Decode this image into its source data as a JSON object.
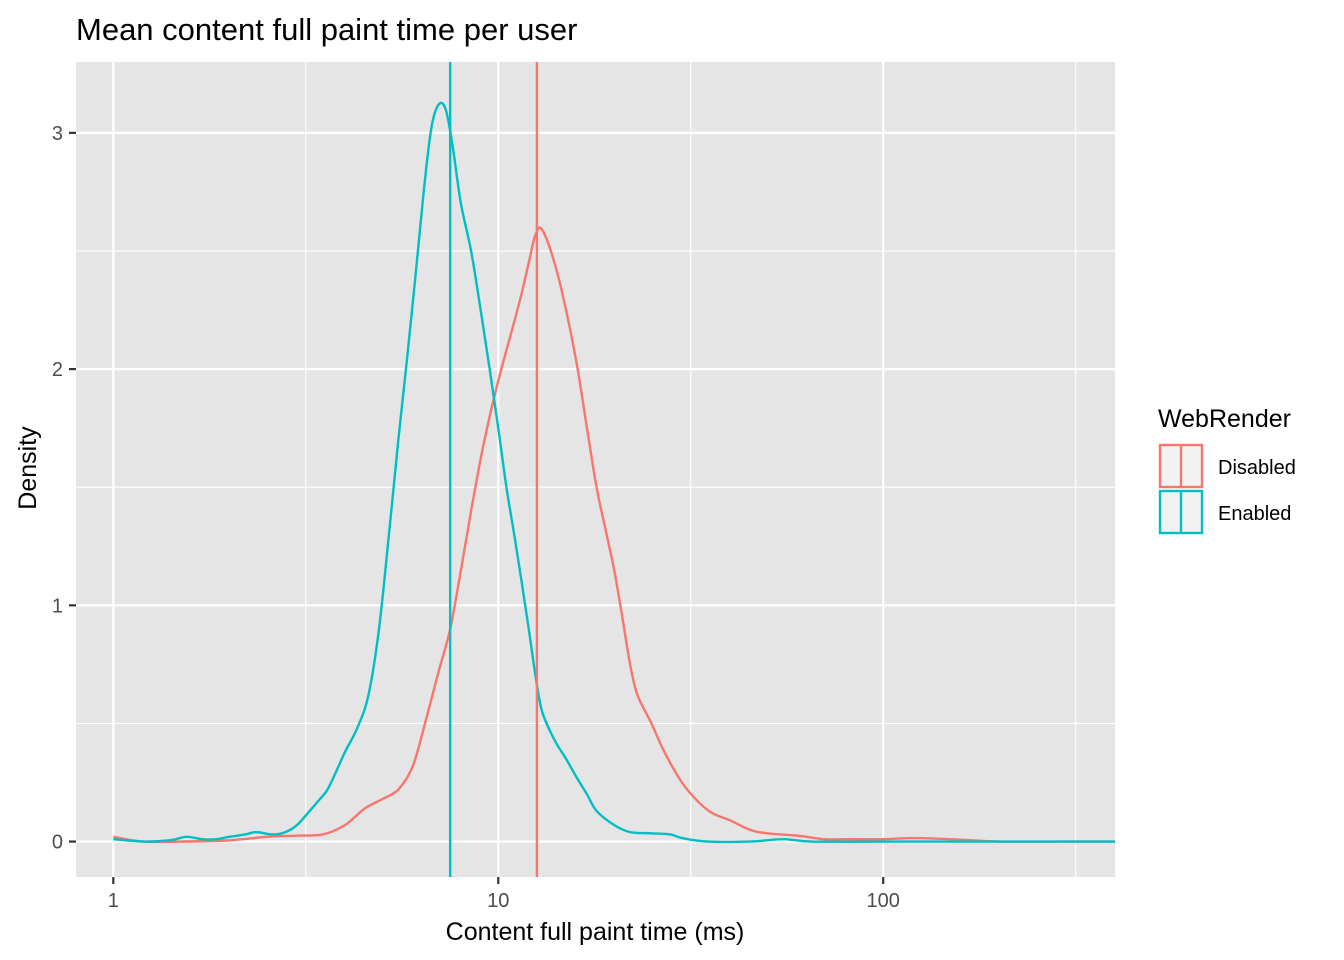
{
  "chart_data": {
    "type": "line",
    "title": "Mean content full paint time per user",
    "xlabel": "Content full paint time (ms)",
    "ylabel": "Density",
    "x_scale": "log10",
    "xlim": [
      0.8,
      400
    ],
    "ylim": [
      -0.15,
      3.3
    ],
    "x_ticks": [
      {
        "value": 1,
        "label": "1"
      },
      {
        "value": 10,
        "label": "10"
      },
      {
        "value": 100,
        "label": "100"
      }
    ],
    "x_minor_ticks": [
      3.1623,
      31.623,
      316.23
    ],
    "y_ticks": [
      {
        "value": 0,
        "label": "0"
      },
      {
        "value": 1,
        "label": "1"
      },
      {
        "value": 2,
        "label": "2"
      },
      {
        "value": 3,
        "label": "3"
      }
    ],
    "y_minor_ticks": [
      0.5,
      1.5,
      2.5
    ],
    "grid": true,
    "panel_color": "#e5e5e5",
    "grid_color": "#ffffff",
    "legend": {
      "title": "WebRender",
      "position": "right"
    },
    "series": [
      {
        "name": "Disabled",
        "color": "#f8766d",
        "mean": 12.6,
        "points": [
          [
            1.0,
            0.02
          ],
          [
            1.2,
            0.0
          ],
          [
            1.5,
            0.0
          ],
          [
            2.0,
            0.005
          ],
          [
            2.5,
            0.02
          ],
          [
            3.0,
            0.025
          ],
          [
            3.5,
            0.03
          ],
          [
            4.0,
            0.07
          ],
          [
            4.5,
            0.14
          ],
          [
            5.0,
            0.18
          ],
          [
            5.5,
            0.22
          ],
          [
            6.0,
            0.32
          ],
          [
            6.5,
            0.52
          ],
          [
            7.0,
            0.72
          ],
          [
            7.5,
            0.9
          ],
          [
            8.0,
            1.15
          ],
          [
            8.5,
            1.4
          ],
          [
            9.0,
            1.62
          ],
          [
            9.5,
            1.8
          ],
          [
            10.0,
            1.95
          ],
          [
            10.5,
            2.08
          ],
          [
            11.0,
            2.2
          ],
          [
            11.5,
            2.32
          ],
          [
            12.0,
            2.45
          ],
          [
            12.5,
            2.57
          ],
          [
            13.0,
            2.59
          ],
          [
            14.0,
            2.45
          ],
          [
            15.0,
            2.25
          ],
          [
            16.0,
            2.02
          ],
          [
            17.0,
            1.75
          ],
          [
            18.0,
            1.5
          ],
          [
            19.0,
            1.32
          ],
          [
            20.0,
            1.15
          ],
          [
            21.0,
            0.95
          ],
          [
            22.0,
            0.75
          ],
          [
            23.0,
            0.62
          ],
          [
            25.0,
            0.5
          ],
          [
            27.0,
            0.38
          ],
          [
            30.0,
            0.25
          ],
          [
            33.0,
            0.17
          ],
          [
            36.0,
            0.12
          ],
          [
            40.0,
            0.09
          ],
          [
            45.0,
            0.05
          ],
          [
            50.0,
            0.035
          ],
          [
            60.0,
            0.025
          ],
          [
            70.0,
            0.01
          ],
          [
            80.0,
            0.01
          ],
          [
            100.0,
            0.01
          ],
          [
            120.0,
            0.015
          ],
          [
            150.0,
            0.01
          ],
          [
            200.0,
            0.0
          ],
          [
            300.0,
            0.0
          ],
          [
            400.0,
            0.0
          ]
        ]
      },
      {
        "name": "Enabled",
        "color": "#00bfc4",
        "mean": 7.5,
        "points": [
          [
            1.0,
            0.01
          ],
          [
            1.2,
            0.0
          ],
          [
            1.4,
            0.005
          ],
          [
            1.55,
            0.02
          ],
          [
            1.7,
            0.01
          ],
          [
            1.85,
            0.01
          ],
          [
            2.0,
            0.02
          ],
          [
            2.2,
            0.03
          ],
          [
            2.35,
            0.04
          ],
          [
            2.6,
            0.03
          ],
          [
            2.8,
            0.04
          ],
          [
            3.0,
            0.07
          ],
          [
            3.2,
            0.12
          ],
          [
            3.4,
            0.17
          ],
          [
            3.6,
            0.22
          ],
          [
            3.8,
            0.3
          ],
          [
            4.0,
            0.38
          ],
          [
            4.3,
            0.48
          ],
          [
            4.6,
            0.62
          ],
          [
            4.9,
            0.9
          ],
          [
            5.2,
            1.3
          ],
          [
            5.5,
            1.7
          ],
          [
            5.8,
            2.05
          ],
          [
            6.1,
            2.4
          ],
          [
            6.4,
            2.75
          ],
          [
            6.7,
            3.02
          ],
          [
            7.0,
            3.12
          ],
          [
            7.3,
            3.1
          ],
          [
            7.6,
            2.95
          ],
          [
            8.0,
            2.7
          ],
          [
            8.5,
            2.5
          ],
          [
            9.0,
            2.25
          ],
          [
            9.5,
            2.0
          ],
          [
            10.0,
            1.75
          ],
          [
            10.5,
            1.5
          ],
          [
            11.0,
            1.3
          ],
          [
            11.5,
            1.1
          ],
          [
            12.0,
            0.9
          ],
          [
            12.5,
            0.7
          ],
          [
            13.0,
            0.55
          ],
          [
            14.0,
            0.43
          ],
          [
            15.0,
            0.35
          ],
          [
            16.0,
            0.27
          ],
          [
            17.0,
            0.2
          ],
          [
            18.0,
            0.13
          ],
          [
            20.0,
            0.07
          ],
          [
            22.0,
            0.04
          ],
          [
            25.0,
            0.035
          ],
          [
            28.0,
            0.03
          ],
          [
            30.0,
            0.015
          ],
          [
            35.0,
            0.0
          ],
          [
            45.0,
            0.0
          ],
          [
            55.0,
            0.01
          ],
          [
            65.0,
            0.0
          ],
          [
            100.0,
            0.0
          ],
          [
            200.0,
            0.0
          ],
          [
            400.0,
            0.0
          ]
        ]
      }
    ]
  }
}
